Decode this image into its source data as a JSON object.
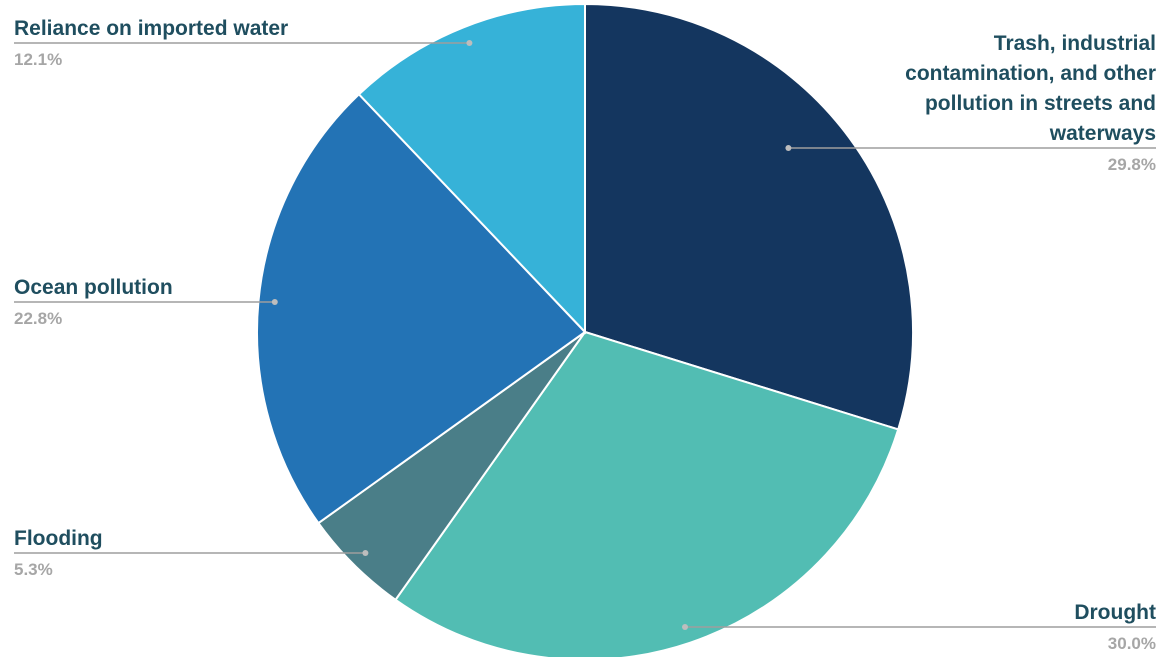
{
  "chart_data": {
    "type": "pie",
    "title": "",
    "start_angle_deg": 0,
    "direction": "clockwise",
    "slices": [
      {
        "label": "Trash, industrial contamination, and other pollution in streets and waterways",
        "label_lines": [
          "Trash, industrial",
          "contamination, and other",
          "pollution in streets and",
          "waterways"
        ],
        "value": 29.8,
        "value_label": "29.8%",
        "color": "#14365f"
      },
      {
        "label": "Drought",
        "label_lines": [
          "Drought"
        ],
        "value": 30.0,
        "value_label": "30.0%",
        "color": "#52bdb3"
      },
      {
        "label": "Flooding",
        "label_lines": [
          "Flooding"
        ],
        "value": 5.3,
        "value_label": "5.3%",
        "color": "#4a7e88"
      },
      {
        "label": "Ocean pollution",
        "label_lines": [
          "Ocean pollution"
        ],
        "value": 22.8,
        "value_label": "22.8%",
        "color": "#2373b5"
      },
      {
        "label": "Reliance on imported water",
        "label_lines": [
          "Reliance on imported water"
        ],
        "value": 12.1,
        "value_label": "12.1%",
        "color": "#36b2d8"
      }
    ],
    "legend": "none",
    "label_color": "#1f4e5f",
    "value_label_color": "#a6a6a6"
  }
}
